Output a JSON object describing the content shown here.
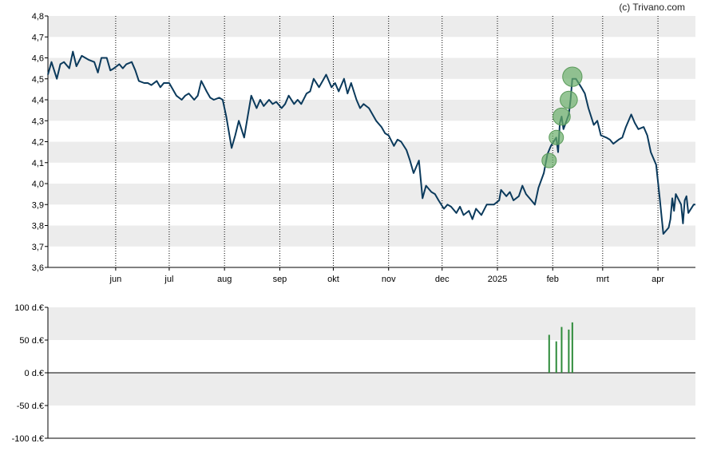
{
  "copyright": "(c) Trivano.com",
  "colors": {
    "band": "#ececec",
    "line": "#0b3a5c",
    "marker": "#6aae6a",
    "bar": "#2e8b3a",
    "axis": "#000000",
    "gridline": "#000000"
  },
  "chart_data": [
    {
      "type": "line",
      "title": "",
      "xlabel": "",
      "ylabel": "",
      "ylim": [
        3.6,
        4.8
      ],
      "yticks": [
        "3,6",
        "3,7",
        "3,8",
        "3,9",
        "4,0",
        "4,1",
        "4,2",
        "4,3",
        "4,4",
        "4,5",
        "4,6",
        "4,7",
        "4,8"
      ],
      "x_range": [
        "2024-04-24",
        "2025-04-22"
      ],
      "month_ticks": [
        {
          "label": "jun",
          "date": "2024-06-01"
        },
        {
          "label": "jul",
          "date": "2024-07-01"
        },
        {
          "label": "aug",
          "date": "2024-08-01"
        },
        {
          "label": "sep",
          "date": "2024-09-01"
        },
        {
          "label": "okt",
          "date": "2024-10-01"
        },
        {
          "label": "nov",
          "date": "2024-11-01"
        },
        {
          "label": "dec",
          "date": "2024-12-01"
        },
        {
          "label": "2025",
          "date": "2025-01-01"
        },
        {
          "label": "feb",
          "date": "2025-02-01"
        },
        {
          "label": "mrt",
          "date": "2025-03-01"
        },
        {
          "label": "apr",
          "date": "2025-04-01"
        }
      ],
      "grid": "vertical dotted at month ticks, horizontal alternating bands",
      "series": [
        {
          "points": [
            [
              "2024-04-24",
              4.52
            ],
            [
              "2024-04-26",
              4.58
            ],
            [
              "2024-04-29",
              4.5
            ],
            [
              "2024-05-01",
              4.57
            ],
            [
              "2024-05-03",
              4.58
            ],
            [
              "2024-05-06",
              4.55
            ],
            [
              "2024-05-08",
              4.63
            ],
            [
              "2024-05-10",
              4.56
            ],
            [
              "2024-05-13",
              4.61
            ],
            [
              "2024-05-15",
              4.6
            ],
            [
              "2024-05-17",
              4.59
            ],
            [
              "2024-05-20",
              4.58
            ],
            [
              "2024-05-22",
              4.53
            ],
            [
              "2024-05-24",
              4.6
            ],
            [
              "2024-05-27",
              4.6
            ],
            [
              "2024-05-29",
              4.54
            ],
            [
              "2024-05-31",
              4.55
            ],
            [
              "2024-06-03",
              4.57
            ],
            [
              "2024-06-05",
              4.55
            ],
            [
              "2024-06-07",
              4.57
            ],
            [
              "2024-06-10",
              4.58
            ],
            [
              "2024-06-12",
              4.54
            ],
            [
              "2024-06-14",
              4.49
            ],
            [
              "2024-06-17",
              4.48
            ],
            [
              "2024-06-19",
              4.48
            ],
            [
              "2024-06-21",
              4.47
            ],
            [
              "2024-06-24",
              4.49
            ],
            [
              "2024-06-26",
              4.46
            ],
            [
              "2024-06-28",
              4.48
            ],
            [
              "2024-07-01",
              4.48
            ],
            [
              "2024-07-03",
              4.45
            ],
            [
              "2024-07-05",
              4.42
            ],
            [
              "2024-07-08",
              4.4
            ],
            [
              "2024-07-10",
              4.42
            ],
            [
              "2024-07-12",
              4.43
            ],
            [
              "2024-07-15",
              4.4
            ],
            [
              "2024-07-17",
              4.42
            ],
            [
              "2024-07-19",
              4.49
            ],
            [
              "2024-07-22",
              4.44
            ],
            [
              "2024-07-24",
              4.41
            ],
            [
              "2024-07-26",
              4.4
            ],
            [
              "2024-07-29",
              4.41
            ],
            [
              "2024-07-31",
              4.4
            ],
            [
              "2024-08-02",
              4.32
            ],
            [
              "2024-08-05",
              4.17
            ],
            [
              "2024-08-07",
              4.23
            ],
            [
              "2024-08-09",
              4.3
            ],
            [
              "2024-08-12",
              4.22
            ],
            [
              "2024-08-14",
              4.32
            ],
            [
              "2024-08-16",
              4.42
            ],
            [
              "2024-08-19",
              4.36
            ],
            [
              "2024-08-21",
              4.4
            ],
            [
              "2024-08-23",
              4.37
            ],
            [
              "2024-08-26",
              4.4
            ],
            [
              "2024-08-28",
              4.38
            ],
            [
              "2024-08-30",
              4.39
            ],
            [
              "2024-09-02",
              4.36
            ],
            [
              "2024-09-04",
              4.38
            ],
            [
              "2024-09-06",
              4.42
            ],
            [
              "2024-09-09",
              4.38
            ],
            [
              "2024-09-11",
              4.4
            ],
            [
              "2024-09-13",
              4.38
            ],
            [
              "2024-09-16",
              4.43
            ],
            [
              "2024-09-18",
              4.44
            ],
            [
              "2024-09-20",
              4.5
            ],
            [
              "2024-09-23",
              4.46
            ],
            [
              "2024-09-25",
              4.49
            ],
            [
              "2024-09-27",
              4.52
            ],
            [
              "2024-09-30",
              4.46
            ],
            [
              "2024-10-02",
              4.48
            ],
            [
              "2024-10-04",
              4.44
            ],
            [
              "2024-10-07",
              4.5
            ],
            [
              "2024-10-09",
              4.43
            ],
            [
              "2024-10-11",
              4.48
            ],
            [
              "2024-10-14",
              4.4
            ],
            [
              "2024-10-16",
              4.36
            ],
            [
              "2024-10-18",
              4.38
            ],
            [
              "2024-10-21",
              4.36
            ],
            [
              "2024-10-23",
              4.33
            ],
            [
              "2024-10-25",
              4.3
            ],
            [
              "2024-10-28",
              4.27
            ],
            [
              "2024-10-30",
              4.24
            ],
            [
              "2024-11-01",
              4.23
            ],
            [
              "2024-11-04",
              4.18
            ],
            [
              "2024-11-06",
              4.21
            ],
            [
              "2024-11-08",
              4.2
            ],
            [
              "2024-11-11",
              4.16
            ],
            [
              "2024-11-13",
              4.11
            ],
            [
              "2024-11-15",
              4.05
            ],
            [
              "2024-11-18",
              4.11
            ],
            [
              "2024-11-20",
              3.93
            ],
            [
              "2024-11-22",
              3.99
            ],
            [
              "2024-11-25",
              3.96
            ],
            [
              "2024-11-27",
              3.95
            ],
            [
              "2024-11-29",
              3.92
            ],
            [
              "2024-12-02",
              3.88
            ],
            [
              "2024-12-04",
              3.9
            ],
            [
              "2024-12-06",
              3.89
            ],
            [
              "2024-12-09",
              3.86
            ],
            [
              "2024-12-11",
              3.89
            ],
            [
              "2024-12-13",
              3.85
            ],
            [
              "2024-12-16",
              3.87
            ],
            [
              "2024-12-18",
              3.83
            ],
            [
              "2024-12-20",
              3.88
            ],
            [
              "2024-12-23",
              3.85
            ],
            [
              "2024-12-26",
              3.9
            ],
            [
              "2024-12-30",
              3.9
            ],
            [
              "2025-01-02",
              3.92
            ],
            [
              "2025-01-03",
              3.97
            ],
            [
              "2025-01-06",
              3.94
            ],
            [
              "2025-01-08",
              3.96
            ],
            [
              "2025-01-10",
              3.92
            ],
            [
              "2025-01-13",
              3.94
            ],
            [
              "2025-01-15",
              3.99
            ],
            [
              "2025-01-17",
              3.95
            ],
            [
              "2025-01-20",
              3.92
            ],
            [
              "2025-01-22",
              3.9
            ],
            [
              "2025-01-24",
              3.98
            ],
            [
              "2025-01-27",
              4.05
            ],
            [
              "2025-01-29",
              4.14
            ],
            [
              "2025-01-31",
              4.18
            ],
            [
              "2025-02-03",
              4.22
            ],
            [
              "2025-02-04",
              4.15
            ],
            [
              "2025-02-05",
              4.29
            ],
            [
              "2025-02-06",
              4.32
            ],
            [
              "2025-02-07",
              4.26
            ],
            [
              "2025-02-10",
              4.33
            ],
            [
              "2025-02-11",
              4.4
            ],
            [
              "2025-02-12",
              4.5
            ],
            [
              "2025-02-14",
              4.5
            ],
            [
              "2025-02-17",
              4.46
            ],
            [
              "2025-02-19",
              4.43
            ],
            [
              "2025-02-21",
              4.36
            ],
            [
              "2025-02-24",
              4.28
            ],
            [
              "2025-02-26",
              4.3
            ],
            [
              "2025-02-28",
              4.23
            ],
            [
              "2025-03-03",
              4.22
            ],
            [
              "2025-03-05",
              4.21
            ],
            [
              "2025-03-07",
              4.19
            ],
            [
              "2025-03-10",
              4.21
            ],
            [
              "2025-03-12",
              4.22
            ],
            [
              "2025-03-14",
              4.27
            ],
            [
              "2025-03-17",
              4.33
            ],
            [
              "2025-03-19",
              4.29
            ],
            [
              "2025-03-21",
              4.26
            ],
            [
              "2025-03-24",
              4.27
            ],
            [
              "2025-03-26",
              4.23
            ],
            [
              "2025-03-28",
              4.15
            ],
            [
              "2025-03-31",
              4.09
            ],
            [
              "2025-04-02",
              3.93
            ],
            [
              "2025-04-04",
              3.76
            ],
            [
              "2025-04-07",
              3.79
            ],
            [
              "2025-04-08",
              3.83
            ],
            [
              "2025-04-09",
              3.93
            ],
            [
              "2025-04-10",
              3.87
            ],
            [
              "2025-04-11",
              3.95
            ],
            [
              "2025-04-14",
              3.9
            ],
            [
              "2025-04-15",
              3.81
            ],
            [
              "2025-04-16",
              3.92
            ],
            [
              "2025-04-17",
              3.94
            ],
            [
              "2025-04-18",
              3.86
            ],
            [
              "2025-04-21",
              3.9
            ],
            [
              "2025-04-22",
              3.9
            ]
          ]
        }
      ],
      "markers": [
        {
          "date": "2025-01-30",
          "value": 4.11,
          "size": 1
        },
        {
          "date": "2025-02-03",
          "value": 4.22,
          "size": 1
        },
        {
          "date": "2025-02-06",
          "value": 4.32,
          "size": 1.2
        },
        {
          "date": "2025-02-10",
          "value": 4.4,
          "size": 1.2
        },
        {
          "date": "2025-02-12",
          "value": 4.51,
          "size": 1.35
        }
      ]
    },
    {
      "type": "bar",
      "title": "",
      "ylim": [
        -100,
        100
      ],
      "yticks": [
        "100 d.€",
        "50 d.€",
        "0 d.€",
        "-50 d.€",
        "-100 d.€"
      ],
      "bars": [
        {
          "date": "2025-01-30",
          "value": 58
        },
        {
          "date": "2025-02-03",
          "value": 48
        },
        {
          "date": "2025-02-06",
          "value": 70
        },
        {
          "date": "2025-02-10",
          "value": 66
        },
        {
          "date": "2025-02-12",
          "value": 77
        }
      ]
    }
  ]
}
